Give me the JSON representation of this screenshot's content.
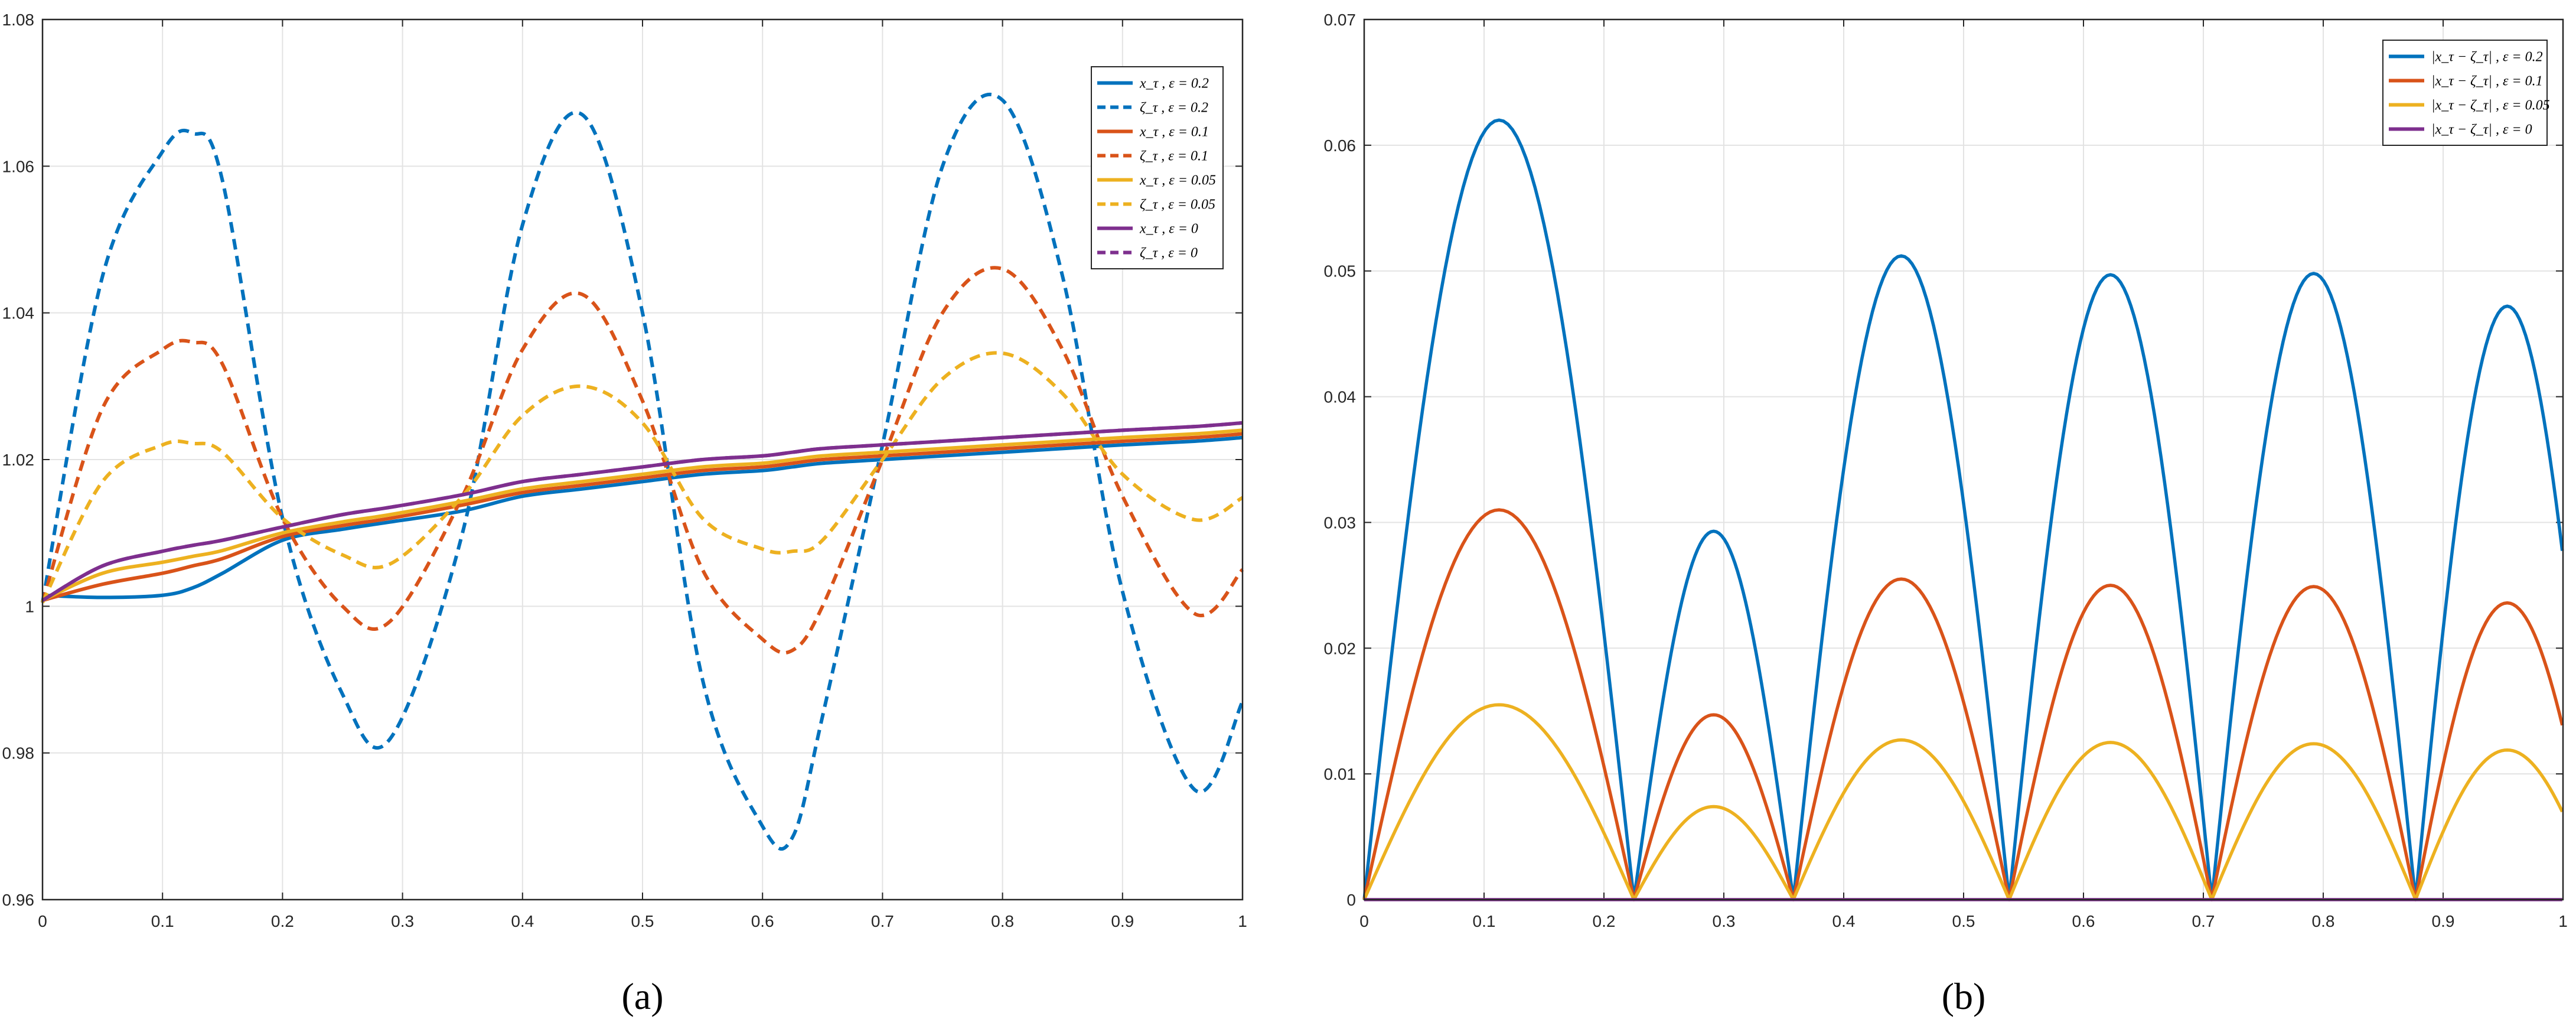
{
  "chart_data": [
    {
      "type": "line",
      "caption": "(a)",
      "xlim": [
        0,
        1
      ],
      "ylim": [
        0.96,
        1.08
      ],
      "xticks": [
        "0",
        "0.1",
        "0.2",
        "0.3",
        "0.4",
        "0.5",
        "0.6",
        "0.7",
        "0.8",
        "0.9",
        "1"
      ],
      "yticks": [
        "0.96",
        "0.98",
        "1",
        "1.02",
        "1.04",
        "1.06",
        "1.08"
      ],
      "grid": true,
      "legend_position": "top-right",
      "x": [
        0,
        0.05,
        0.1,
        0.125,
        0.15,
        0.2,
        0.25,
        0.29,
        0.35,
        0.4,
        0.45,
        0.5,
        0.55,
        0.6,
        0.625,
        0.65,
        0.7,
        0.75,
        0.8,
        0.85,
        0.9,
        0.96,
        1
      ],
      "series": [
        {
          "name": "x_τ , ε = 0.2",
          "color": "#0072BD",
          "dash": "solid",
          "values": [
            1.0015,
            1.0012,
            1.0015,
            1.0025,
            1.0045,
            1.009,
            1.0105,
            1.0115,
            1.013,
            1.015,
            1.016,
            1.017,
            1.018,
            1.0185,
            1.019,
            1.0195,
            1.02,
            1.0205,
            1.021,
            1.0215,
            1.022,
            1.0225,
            1.023
          ]
        },
        {
          "name": "ζ_τ , ε = 0.2",
          "color": "#0072BD",
          "dash": "dashed",
          "values": [
            1.0005,
            1.045,
            1.062,
            1.0645,
            1.058,
            1.012,
            0.988,
            0.982,
            1.01,
            1.052,
            1.067,
            1.04,
            0.99,
            0.97,
            0.9685,
            0.985,
            1.022,
            1.06,
            1.069,
            1.045,
            1.002,
            0.975,
            0.987
          ]
        },
        {
          "name": "x_τ , ε = 0.1",
          "color": "#D95319",
          "dash": "solid",
          "values": [
            1.0008,
            1.003,
            1.0045,
            1.0055,
            1.0065,
            1.0095,
            1.011,
            1.012,
            1.0138,
            1.0155,
            1.0165,
            1.0175,
            1.0185,
            1.019,
            1.0195,
            1.02,
            1.0205,
            1.021,
            1.0215,
            1.022,
            1.0225,
            1.023,
            1.0235
          ]
        },
        {
          "name": "ζ_τ , ε = 0.1",
          "color": "#D95319",
          "dash": "dashed",
          "values": [
            1.0005,
            1.027,
            1.035,
            1.036,
            1.033,
            1.012,
            1.0,
            0.998,
            1.015,
            1.035,
            1.0425,
            1.028,
            1.005,
            0.9955,
            0.994,
            1.0,
            1.02,
            1.04,
            1.046,
            1.035,
            1.015,
            0.999,
            1.005
          ]
        },
        {
          "name": "x_τ , ε = 0.05",
          "color": "#EDB120",
          "dash": "solid",
          "values": [
            1.0008,
            1.0045,
            1.006,
            1.0068,
            1.0076,
            1.01,
            1.0115,
            1.0125,
            1.0143,
            1.016,
            1.017,
            1.018,
            1.019,
            1.0195,
            1.02,
            1.0205,
            1.021,
            1.0215,
            1.022,
            1.0225,
            1.023,
            1.0235,
            1.024
          ]
        },
        {
          "name": "ζ_τ , ε = 0.05",
          "color": "#EDB120",
          "dash": "dashed",
          "values": [
            1.0005,
            1.017,
            1.022,
            1.0222,
            1.021,
            1.012,
            1.007,
            1.0058,
            1.015,
            1.026,
            1.03,
            1.025,
            1.012,
            1.0078,
            1.0075,
            1.009,
            1.02,
            1.031,
            1.0345,
            1.029,
            1.018,
            1.0118,
            1.0148
          ]
        },
        {
          "name": "x_τ , ε = 0",
          "color": "#7E2F8E",
          "dash": "solid",
          "values": [
            1.0008,
            1.0055,
            1.0075,
            1.0083,
            1.009,
            1.0108,
            1.0125,
            1.0135,
            1.0152,
            1.017,
            1.018,
            1.019,
            1.02,
            1.0205,
            1.021,
            1.0215,
            1.022,
            1.0225,
            1.023,
            1.0235,
            1.024,
            1.0245,
            1.025
          ]
        },
        {
          "name": "ζ_τ , ε = 0",
          "color": "#7E2F8E",
          "dash": "dashed",
          "values": [
            1.0008,
            1.0055,
            1.0075,
            1.0083,
            1.009,
            1.0108,
            1.0125,
            1.0135,
            1.0152,
            1.017,
            1.018,
            1.019,
            1.02,
            1.0205,
            1.021,
            1.0215,
            1.022,
            1.0225,
            1.023,
            1.0235,
            1.024,
            1.0245,
            1.025
          ]
        }
      ]
    },
    {
      "type": "line",
      "caption": "(b)",
      "xlim": [
        0,
        1
      ],
      "ylim": [
        0,
        0.07
      ],
      "xticks": [
        "0",
        "0.1",
        "0.2",
        "0.3",
        "0.4",
        "0.5",
        "0.6",
        "0.7",
        "0.8",
        "0.9",
        "1"
      ],
      "yticks": [
        "0",
        "0.01",
        "0.02",
        "0.03",
        "0.04",
        "0.05",
        "0.06",
        "0.07"
      ],
      "grid": true,
      "legend_position": "top-right",
      "zeros": [
        0,
        0.225,
        0.358,
        0.538,
        0.707,
        0.877
      ],
      "series": [
        {
          "name": "|x_τ − ζ_τ| , ε = 0.2",
          "color": "#0072BD",
          "peaks": [
            0.062,
            0.0293,
            0.0512,
            0.0497,
            0.0498,
            0.0472
          ],
          "end_value": 0.036
        },
        {
          "name": "|x_τ − ζ_τ| , ε = 0.1",
          "color": "#D95319",
          "peaks": [
            0.031,
            0.0147,
            0.0255,
            0.025,
            0.0249,
            0.0236
          ],
          "end_value": 0.018
        },
        {
          "name": "|x_τ − ζ_τ| , ε = 0.05",
          "color": "#EDB120",
          "peaks": [
            0.0155,
            0.0074,
            0.0127,
            0.0125,
            0.0124,
            0.0119
          ],
          "end_value": 0.009
        },
        {
          "name": "|x_τ − ζ_τ| , ε = 0",
          "color": "#7E2F8E",
          "peaks": [
            0,
            0,
            0,
            0,
            0,
            0
          ],
          "end_value": 0
        }
      ]
    }
  ]
}
